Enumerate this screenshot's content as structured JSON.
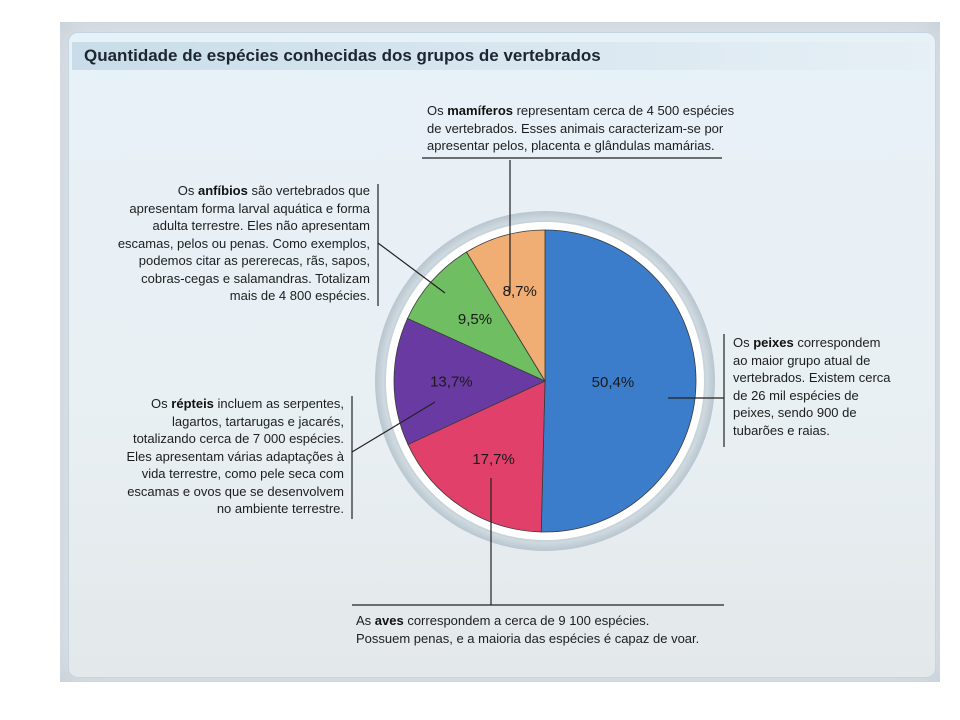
{
  "title": "Quantidade de espécies conhecidas dos grupos de vertebrados",
  "chart_data": {
    "type": "pie",
    "title": "Quantidade de espécies conhecidas dos grupos de vertebrados",
    "slices": [
      {
        "label": "50,4%",
        "value": 50.4,
        "color": "#3b7ccb"
      },
      {
        "label": "17,7%",
        "value": 17.7,
        "color": "#e0406a"
      },
      {
        "label": "13,7%",
        "value": 13.7,
        "color": "#6a3aa3"
      },
      {
        "label": "9,5%",
        "value": 9.5,
        "color": "#6fbe62"
      },
      {
        "label": "8,7%",
        "value": 8.7,
        "color": "#f0ad74"
      }
    ]
  },
  "notes": {
    "mamiferos": {
      "bold": "mamíferos",
      "lines": [
        "Os ",
        " representam cerca de 4 500 espécies",
        "de vertebrados. Esses animais caracterizam-se por",
        "apresentar pelos, placenta e glândulas mamárias."
      ]
    },
    "anfibios": {
      "bold": "anfíbios",
      "lines": [
        "Os ",
        " são vertebrados que",
        "apresentam forma larval aquática e forma",
        "adulta terrestre. Eles não apresentam",
        "escamas, pelos ou penas. Como exemplos,",
        "podemos citar as pererecas, rãs, sapos,",
        "cobras-cegas e salamandras. Totalizam",
        "mais de 4 800 espécies."
      ]
    },
    "peixes": {
      "bold": "peixes",
      "lines": [
        "Os ",
        " correspondem",
        "ao maior grupo atual de",
        "vertebrados. Existem cerca",
        "de 26 mil espécies de",
        "peixes, sendo 900 de",
        "tubarões e raias."
      ]
    },
    "repteis": {
      "bold": "répteis",
      "lines": [
        "Os ",
        " incluem as serpentes,",
        "lagartos, tartarugas e jacarés,",
        "totalizando cerca de 7 000 espécies.",
        "Eles apresentam várias adaptações à",
        "vida terrestre, como pele seca com",
        "escamas e ovos que se desenvolvem",
        "no ambiente terrestre."
      ]
    },
    "aves": {
      "bold": "aves",
      "lines": [
        "As ",
        " correspondem a cerca de 9 100 espécies.",
        "Possuem penas, e a maioria das espécies é capaz de voar."
      ]
    }
  }
}
